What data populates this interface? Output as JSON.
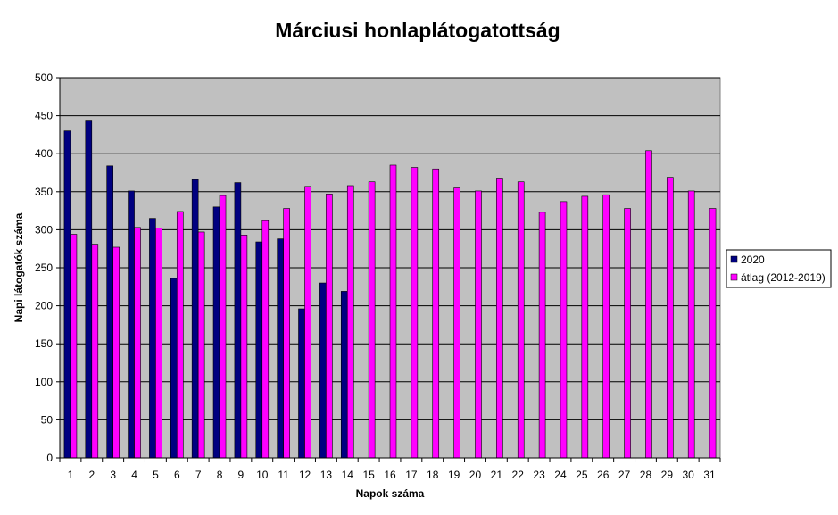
{
  "chart_data": {
    "type": "bar",
    "title": "Márciusi honlaplátogatottság",
    "xlabel": "Napok száma",
    "ylabel": "Napi látogatók száma",
    "ylim": [
      0,
      500
    ],
    "yticks": [
      "0",
      "50",
      "100",
      "150",
      "200",
      "250",
      "300",
      "350",
      "400",
      "450",
      "500"
    ],
    "grid": true,
    "legend_position": "right",
    "plot_background": "#c0c0c0",
    "categories": [
      "1",
      "2",
      "3",
      "4",
      "5",
      "6",
      "7",
      "8",
      "9",
      "10",
      "11",
      "12",
      "13",
      "14",
      "15",
      "16",
      "17",
      "18",
      "19",
      "20",
      "21",
      "22",
      "23",
      "24",
      "25",
      "26",
      "27",
      "28",
      "29",
      "30",
      "31"
    ],
    "series": [
      {
        "name": "2020",
        "color": "#000080",
        "values": [
          430,
          443,
          384,
          351,
          315,
          236,
          366,
          330,
          362,
          284,
          288,
          196,
          230,
          219,
          null,
          null,
          null,
          null,
          null,
          null,
          null,
          null,
          null,
          null,
          null,
          null,
          null,
          null,
          null,
          null,
          null
        ]
      },
      {
        "name": "átlag (2012-2019)",
        "color": "#ff00ff",
        "values": [
          294,
          281,
          277,
          303,
          302,
          324,
          297,
          345,
          293,
          312,
          328,
          357,
          347,
          358,
          363,
          385,
          382,
          380,
          355,
          351,
          368,
          363,
          323,
          337,
          344,
          346,
          328,
          404,
          369,
          351,
          328
        ]
      }
    ]
  }
}
